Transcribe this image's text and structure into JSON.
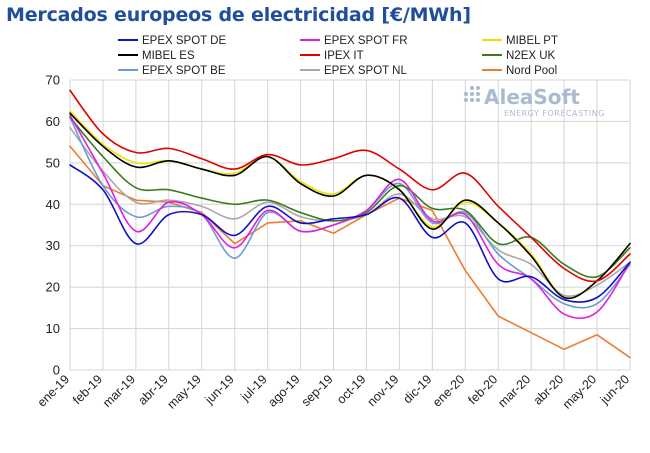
{
  "title": "Mercados europeos de electricidad [€/MWh]",
  "logo": {
    "name": "AleaSoft",
    "tagline": "ENERGY FORECASTING"
  },
  "chart_data": {
    "type": "line",
    "title": "Mercados europeos de electricidad [€/MWh]",
    "xlabel": "",
    "ylabel": "",
    "ylim": [
      0,
      70
    ],
    "yticks": [
      0,
      10,
      20,
      30,
      40,
      50,
      60,
      70
    ],
    "grid": "vertical and horizontal",
    "legend_position": "top",
    "categories": [
      "ene-19",
      "feb-19",
      "mar-19",
      "abr-19",
      "may-19",
      "jun-19",
      "jul-19",
      "ago-19",
      "sep-19",
      "oct-19",
      "nov-19",
      "dic-19",
      "ene-20",
      "feb-20",
      "mar-20",
      "abr-20",
      "may-20",
      "jun-20"
    ],
    "series": [
      {
        "name": "EPEX SPOT DE",
        "color": "#1010c8",
        "values": [
          49.5,
          43.5,
          30.5,
          37.5,
          37.5,
          32.5,
          39.5,
          35.5,
          36.5,
          37.5,
          41.5,
          32.0,
          35.5,
          22.0,
          22.5,
          17.0,
          17.5,
          26.0
        ]
      },
      {
        "name": "EPEX SPOT FR",
        "color": "#e020e0",
        "values": [
          61.5,
          47.5,
          33.5,
          40.5,
          37.5,
          29.5,
          38.5,
          33.5,
          35.0,
          38.5,
          46.0,
          36.0,
          37.5,
          25.5,
          22.0,
          13.5,
          14.0,
          26.0
        ]
      },
      {
        "name": "MIBEL PT",
        "color": "#f0e000",
        "values": [
          62.5,
          54.5,
          50.0,
          50.5,
          48.5,
          47.5,
          51.5,
          45.5,
          42.5,
          47.0,
          43.5,
          34.5,
          40.5,
          35.5,
          28.0,
          17.5,
          21.5,
          30.5
        ]
      },
      {
        "name": "MIBEL ES",
        "color": "#000000",
        "values": [
          62.0,
          54.0,
          49.0,
          50.5,
          48.5,
          47.0,
          51.5,
          45.0,
          42.0,
          47.0,
          43.5,
          34.0,
          41.0,
          35.5,
          27.5,
          17.5,
          21.5,
          30.5
        ]
      },
      {
        "name": "IPEX IT",
        "color": "#e00000",
        "values": [
          67.5,
          57.0,
          52.5,
          53.5,
          51.0,
          48.5,
          52.0,
          49.5,
          51.0,
          53.0,
          48.5,
          43.5,
          47.5,
          39.5,
          32.0,
          24.5,
          21.5,
          28.0
        ]
      },
      {
        "name": "N2EX UK",
        "color": "#3c7a1e",
        "values": [
          61.0,
          51.5,
          44.0,
          43.5,
          41.5,
          40.0,
          41.0,
          38.0,
          36.0,
          38.0,
          44.5,
          39.0,
          38.5,
          30.5,
          32.0,
          25.5,
          22.5,
          29.5
        ]
      },
      {
        "name": "EPEX SPOT BE",
        "color": "#6e9ad2",
        "values": [
          61.0,
          44.5,
          37.0,
          39.5,
          37.5,
          27.0,
          38.0,
          33.5,
          35.0,
          38.5,
          45.0,
          35.5,
          38.0,
          28.0,
          22.0,
          16.0,
          16.0,
          25.5
        ]
      },
      {
        "name": "EPEX SPOT NL",
        "color": "#a8a8a8",
        "values": [
          58.5,
          48.0,
          40.5,
          41.0,
          39.5,
          36.5,
          40.5,
          37.0,
          36.0,
          37.5,
          42.5,
          36.5,
          37.0,
          29.0,
          25.5,
          18.0,
          20.5,
          26.0
        ]
      },
      {
        "name": "Nord Pool",
        "color": "#ed7d31",
        "values": [
          54.0,
          44.5,
          41.0,
          40.5,
          38.0,
          30.5,
          35.5,
          36.0,
          33.0,
          37.5,
          41.5,
          38.5,
          24.0,
          13.0,
          9.0,
          5.0,
          8.5,
          3.0
        ]
      }
    ]
  }
}
